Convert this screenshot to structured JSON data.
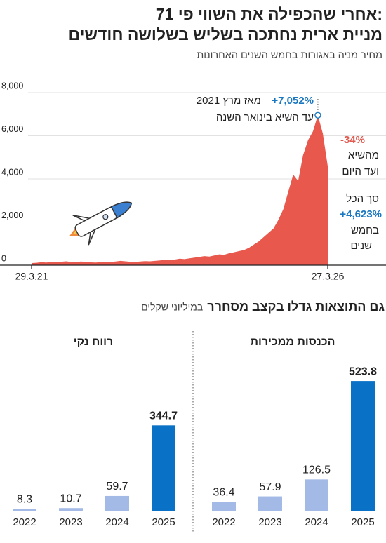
{
  "header": {
    "title": [
      "אחרי שהכפילה את השווי פי 71:",
      "מניית ארית נחתכה בשליש בשלושה חודשים"
    ]
  },
  "chart_data": [
    {
      "type": "area",
      "subtitle": "מחיר מניה באגורות בחמש השנים האחרונות",
      "color": "#e8584c",
      "categories": [
        "29.3.21",
        null,
        null,
        null,
        null,
        null,
        null,
        null,
        null,
        null,
        null,
        null,
        null,
        null,
        null,
        null,
        null,
        null,
        null,
        null,
        null,
        null,
        null,
        null,
        null,
        null,
        null,
        null,
        null,
        null,
        null,
        null,
        null,
        null,
        null,
        null,
        null,
        null,
        null,
        null,
        null,
        null,
        null,
        null,
        null,
        null,
        null,
        null,
        null,
        null,
        null,
        null,
        null,
        null,
        null,
        null,
        null,
        null,
        null,
        null,
        "27.3.26"
      ],
      "values": [
        97,
        110,
        140,
        120,
        150,
        130,
        160,
        180,
        150,
        140,
        170,
        150,
        130,
        120,
        140,
        130,
        150,
        170,
        200,
        180,
        160,
        150,
        170,
        190,
        180,
        200,
        220,
        250,
        230,
        260,
        300,
        280,
        320,
        350,
        380,
        420,
        400,
        450,
        500,
        480,
        550,
        600,
        650,
        700,
        800,
        950,
        1100,
        1300,
        1500,
        1700,
        2100,
        2600,
        3400,
        4200,
        3900,
        5100,
        5800,
        6200,
        6953,
        6100,
        4585
      ],
      "ylim": [
        0,
        8000
      ],
      "yticks": [
        0,
        {
          "value": 2000,
          "label": "2,000"
        },
        {
          "value": 4000,
          "label": "4,000"
        },
        {
          "value": 6000,
          "label": "6,000"
        },
        {
          "value": 8000,
          "label": "8,000"
        }
      ],
      "grid": true,
      "annotations": [
        {
          "text": "+7,052%",
          "color": "#1a78c2"
        },
        {
          "text": "מאז מרץ 2021",
          "color": "#222222"
        },
        {
          "text": "עד השיא בינואר השנה",
          "color": "#222222"
        },
        {
          "text": "-34%",
          "color": "#e05a4f"
        },
        {
          "text": "מהשיא",
          "color": "#222222"
        },
        {
          "text": "ועד היום",
          "color": "#222222"
        },
        {
          "text": "סך הכל",
          "color": "#222222"
        },
        {
          "text": "+4,623%",
          "color": "#1a78c2"
        },
        {
          "text": "בחמש",
          "color": "#222222"
        },
        {
          "text": "שנים",
          "color": "#222222"
        }
      ]
    },
    {
      "type": "bar",
      "title": "הכנסות ממכירות",
      "categories": [
        "2022",
        "2023",
        "2024",
        "2025"
      ],
      "values": [
        36.4,
        57.9,
        126.5,
        523.8
      ],
      "colors": [
        "#a3b9e6",
        "#a3b9e6",
        "#a3b9e6",
        "#0a72c6"
      ]
    },
    {
      "type": "bar",
      "title": "רווח נקי",
      "categories": [
        "2022",
        "2023",
        "2024",
        "2025"
      ],
      "values": [
        8.3,
        10.7,
        59.7,
        344.7
      ],
      "colors": [
        "#a3b9e6",
        "#a3b9e6",
        "#a3b9e6",
        "#0a72c6"
      ]
    }
  ],
  "section": {
    "title": "גם התוצאות גדלו בקצב מסחרר",
    "unit": "במיליוני שקלים"
  }
}
